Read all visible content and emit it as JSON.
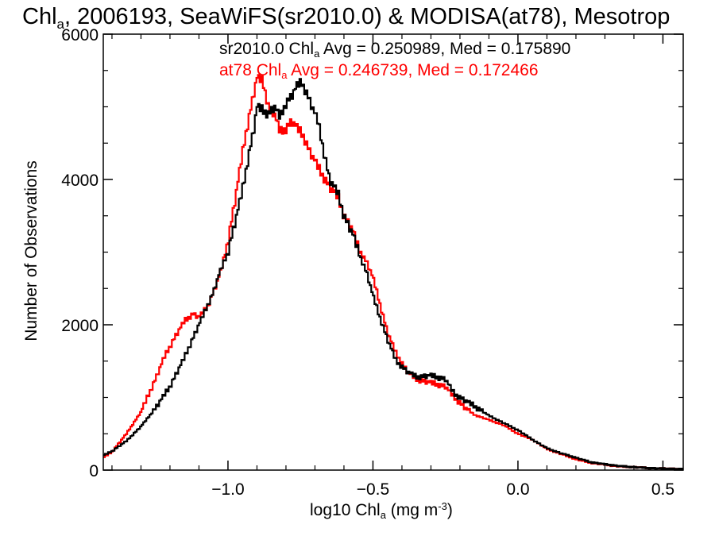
{
  "chart_data": {
    "type": "line",
    "title_parts": [
      "Chl",
      "a",
      ", 2006193, SeaWiFS(sr2010.0) & MODISA(at78), Mesotrop"
    ],
    "xlabel_parts": [
      "log10 Chl",
      "a",
      " (mg m",
      "-3",
      ")"
    ],
    "ylabel": "Number of Observations",
    "xlim": [
      -1.43,
      0.57
    ],
    "ylim": [
      0,
      6000
    ],
    "xticks": [
      -1.0,
      -0.5,
      0.0,
      0.5
    ],
    "xtick_labels": [
      "−1.0",
      "−0.5",
      "0.0",
      "0.5"
    ],
    "yticks": [
      0,
      2000,
      4000,
      6000
    ],
    "ytick_labels": [
      "0",
      "2000",
      "4000",
      "6000"
    ],
    "grid": false,
    "step": true,
    "series": [
      {
        "name": "sr2010.0",
        "color": "#000000",
        "stat_parts": [
          "sr2010.0 Chl",
          "a",
          " Avg = 0.250989, Med = 0.175890"
        ],
        "points": [
          [
            -1.43,
            200
          ],
          [
            -1.4,
            260
          ],
          [
            -1.35,
            400
          ],
          [
            -1.3,
            600
          ],
          [
            -1.25,
            850
          ],
          [
            -1.2,
            1150
          ],
          [
            -1.15,
            1550
          ],
          [
            -1.1,
            2000
          ],
          [
            -1.05,
            2450
          ],
          [
            -1.03,
            2700
          ],
          [
            -1.0,
            3000
          ],
          [
            -0.97,
            3500
          ],
          [
            -0.95,
            3850
          ],
          [
            -0.93,
            4300
          ],
          [
            -0.91,
            4700
          ],
          [
            -0.9,
            5000
          ],
          [
            -0.88,
            4950
          ],
          [
            -0.86,
            4900
          ],
          [
            -0.84,
            5000
          ],
          [
            -0.82,
            4850
          ],
          [
            -0.8,
            5050
          ],
          [
            -0.78,
            5150
          ],
          [
            -0.76,
            5300
          ],
          [
            -0.745,
            5330
          ],
          [
            -0.73,
            5200
          ],
          [
            -0.71,
            5000
          ],
          [
            -0.69,
            4800
          ],
          [
            -0.67,
            4400
          ],
          [
            -0.65,
            4000
          ],
          [
            -0.62,
            3800
          ],
          [
            -0.6,
            3500
          ],
          [
            -0.57,
            3250
          ],
          [
            -0.55,
            3000
          ],
          [
            -0.52,
            2700
          ],
          [
            -0.5,
            2400
          ],
          [
            -0.48,
            2150
          ],
          [
            -0.45,
            1800
          ],
          [
            -0.42,
            1500
          ],
          [
            -0.38,
            1350
          ],
          [
            -0.35,
            1280
          ],
          [
            -0.3,
            1300
          ],
          [
            -0.25,
            1250
          ],
          [
            -0.22,
            1050
          ],
          [
            -0.18,
            950
          ],
          [
            -0.15,
            880
          ],
          [
            -0.1,
            750
          ],
          [
            -0.05,
            650
          ],
          [
            0.0,
            550
          ],
          [
            0.05,
            420
          ],
          [
            0.1,
            300
          ],
          [
            0.15,
            230
          ],
          [
            0.2,
            170
          ],
          [
            0.25,
            110
          ],
          [
            0.3,
            80
          ],
          [
            0.35,
            55
          ],
          [
            0.4,
            40
          ],
          [
            0.45,
            28
          ],
          [
            0.5,
            20
          ],
          [
            0.55,
            15
          ],
          [
            0.57,
            12
          ]
        ]
      },
      {
        "name": "at78",
        "color": "#ff0000",
        "stat_parts": [
          "at78 Chl",
          "a",
          " Avg = 0.246739, Med = 0.172466"
        ],
        "points": [
          [
            -1.43,
            170
          ],
          [
            -1.4,
            250
          ],
          [
            -1.35,
            500
          ],
          [
            -1.3,
            800
          ],
          [
            -1.25,
            1250
          ],
          [
            -1.22,
            1550
          ],
          [
            -1.18,
            1850
          ],
          [
            -1.15,
            2050
          ],
          [
            -1.12,
            2150
          ],
          [
            -1.1,
            2100
          ],
          [
            -1.07,
            2250
          ],
          [
            -1.04,
            2550
          ],
          [
            -1.02,
            2800
          ],
          [
            -1.0,
            3150
          ],
          [
            -0.98,
            3600
          ],
          [
            -0.96,
            4100
          ],
          [
            -0.94,
            4600
          ],
          [
            -0.92,
            5000
          ],
          [
            -0.9,
            5400
          ],
          [
            -0.88,
            5350
          ],
          [
            -0.86,
            5000
          ],
          [
            -0.84,
            4900
          ],
          [
            -0.82,
            4650
          ],
          [
            -0.8,
            4700
          ],
          [
            -0.78,
            4800
          ],
          [
            -0.76,
            4700
          ],
          [
            -0.74,
            4600
          ],
          [
            -0.72,
            4400
          ],
          [
            -0.7,
            4250
          ],
          [
            -0.68,
            4100
          ],
          [
            -0.65,
            3900
          ],
          [
            -0.62,
            3750
          ],
          [
            -0.6,
            3500
          ],
          [
            -0.57,
            3300
          ],
          [
            -0.55,
            3050
          ],
          [
            -0.52,
            2850
          ],
          [
            -0.5,
            2650
          ],
          [
            -0.48,
            2350
          ],
          [
            -0.45,
            1900
          ],
          [
            -0.42,
            1600
          ],
          [
            -0.38,
            1350
          ],
          [
            -0.35,
            1250
          ],
          [
            -0.3,
            1200
          ],
          [
            -0.25,
            1150
          ],
          [
            -0.22,
            1000
          ],
          [
            -0.18,
            850
          ],
          [
            -0.15,
            760
          ],
          [
            -0.1,
            690
          ],
          [
            -0.05,
            620
          ],
          [
            0.0,
            500
          ],
          [
            0.05,
            420
          ],
          [
            0.1,
            290
          ],
          [
            0.15,
            220
          ],
          [
            0.2,
            150
          ],
          [
            0.25,
            100
          ],
          [
            0.3,
            75
          ],
          [
            0.35,
            50
          ],
          [
            0.4,
            40
          ],
          [
            0.45,
            28
          ],
          [
            0.5,
            20
          ],
          [
            0.55,
            15
          ],
          [
            0.57,
            12
          ]
        ]
      }
    ]
  }
}
